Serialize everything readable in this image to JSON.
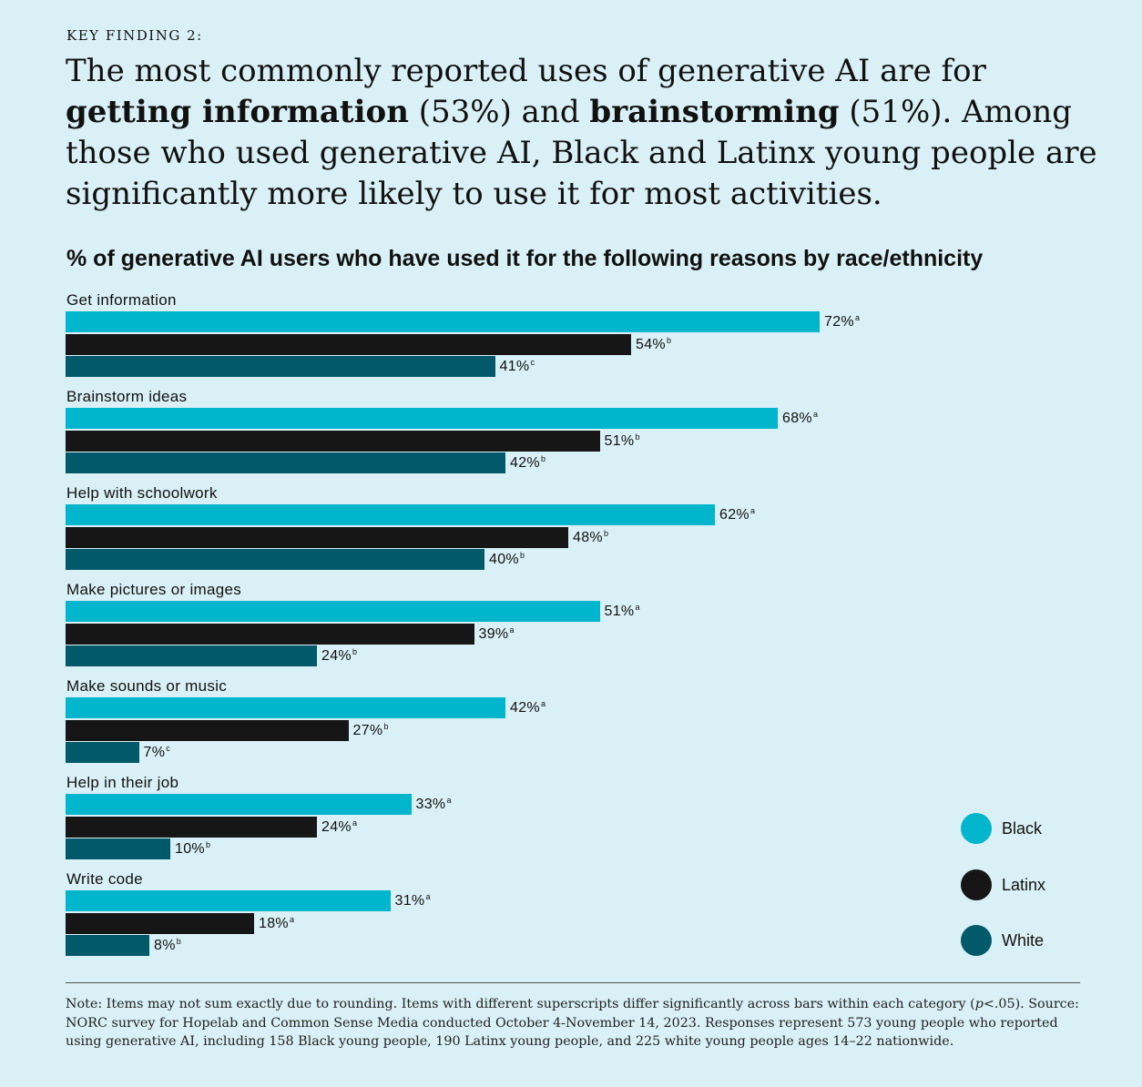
{
  "kicker": "KEY FINDING 2:",
  "headline": {
    "part1": "The most commonly reported uses of generative AI are for ",
    "bold1": "getting information",
    "part2": " (53%) and ",
    "bold2": "brainstorming",
    "part3": " (51%). Among those who used generative AI, Black and Latinx young people are significantly more likely to use it for most activities."
  },
  "chart_data": {
    "type": "bar",
    "orientation": "horizontal",
    "title": "% of generative AI users who have used it for the following reasons by race/ethnicity",
    "categories": [
      "Get information",
      "Brainstorm ideas",
      "Help with schoolwork",
      "Make pictures or images",
      "Make sounds or music",
      "Help in their job",
      "Write code"
    ],
    "series": [
      {
        "name": "Black",
        "color": "#00b5cc",
        "values": [
          72,
          68,
          62,
          51,
          42,
          33,
          31
        ],
        "superscripts": [
          "a",
          "a",
          "a",
          "a",
          "a",
          "a",
          "a"
        ]
      },
      {
        "name": "Latinx",
        "color": "#161616",
        "values": [
          54,
          51,
          48,
          39,
          27,
          24,
          18
        ],
        "superscripts": [
          "b",
          "b",
          "b",
          "a",
          "b",
          "a",
          "a"
        ]
      },
      {
        "name": "White",
        "color": "#02596a",
        "values": [
          41,
          42,
          40,
          24,
          7,
          10,
          8
        ],
        "superscripts": [
          "c",
          "b",
          "b",
          "b",
          "c",
          "b",
          "b"
        ]
      }
    ],
    "value_suffix": "%",
    "legend_position": "right",
    "grid": false
  },
  "note": {
    "part1": "Note: Items may not sum exactly due to rounding. Items with different superscripts differ significantly across bars within each category (",
    "p": "p",
    "part2": "<.05). Source: NORC survey for Hopelab and Common Sense Media conducted October 4-November 14, 2023. Responses represent 573 young people who reported using generative AI, including 158 Black young people, 190 Latinx young people, and 225 white young people ages 14–22 nationwide."
  }
}
